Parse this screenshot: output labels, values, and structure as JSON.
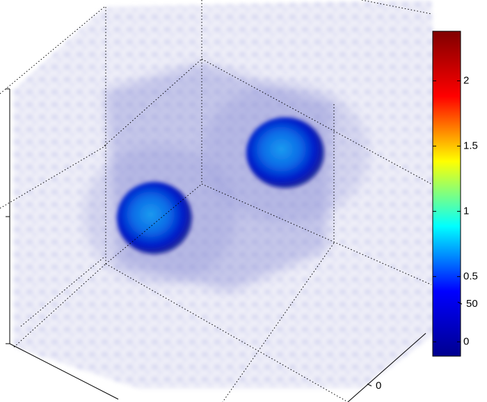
{
  "chart_data": {
    "type": "volume",
    "colorbar": {
      "colormap": "jet",
      "clim": [
        -0.11,
        2.38
      ],
      "ticks": [
        0,
        0.5,
        1,
        1.5,
        2
      ]
    },
    "yticks": [
      0,
      50
    ]
  }
}
